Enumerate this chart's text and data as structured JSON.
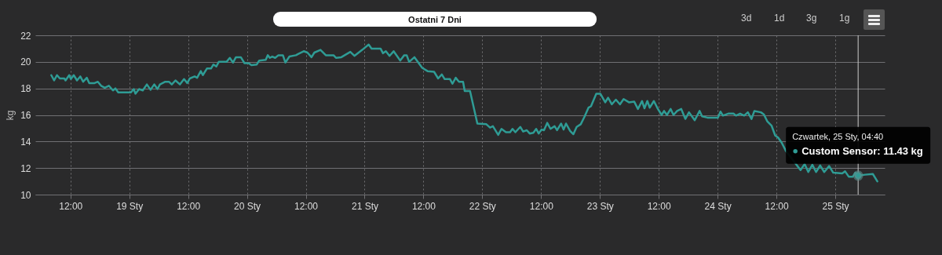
{
  "chart_data": {
    "type": "line",
    "title": "Ostatni 7 Dni",
    "ylabel": "kg",
    "xlim": [
      "--01-18T04:50",
      "--01-25T10:05"
    ],
    "xticks": [
      {
        "value": "--01-18T12:00",
        "label": "12:00"
      },
      {
        "value": "--01-19",
        "label": "19 Sty"
      },
      {
        "value": "--01-19T12:00",
        "label": "12:00"
      },
      {
        "value": "--01-20",
        "label": "20 Sty"
      },
      {
        "value": "--01-20T12:00",
        "label": "12:00"
      },
      {
        "value": "--01-21",
        "label": "21 Sty"
      },
      {
        "value": "--01-21T12:00",
        "label": "12:00"
      },
      {
        "value": "--01-22",
        "label": "22 Sty"
      },
      {
        "value": "--01-22T12:00",
        "label": "12:00"
      },
      {
        "value": "--01-23",
        "label": "23 Sty"
      },
      {
        "value": "--01-23T12:00",
        "label": "12:00"
      },
      {
        "value": "--01-24",
        "label": "24 Sty"
      },
      {
        "value": "--01-24T12:00",
        "label": "12:00"
      },
      {
        "value": "--01-25",
        "label": "25 Sty"
      }
    ],
    "ylim": [
      10,
      22
    ],
    "yticks": [
      10,
      12,
      14,
      16,
      18,
      20,
      22
    ],
    "grid": true,
    "series": [
      {
        "color": "#2f9c95",
        "x": [
          "--01-18T08:05",
          "--01-18T08:40",
          "--01-18T09:15",
          "--01-18T09:50",
          "--01-18T10:45",
          "--01-18T11:00",
          "--01-18T11:45",
          "--01-18T12:05",
          "--01-18T12:40",
          "--01-18T13:20",
          "--01-18T14:00",
          "--01-18T14:35",
          "--01-18T15:20",
          "--01-18T15:50",
          "--01-18T16:55",
          "--01-18T17:35",
          "--01-18T18:15",
          "--01-18T19:00",
          "--01-18T19:50",
          "--01-18T20:40",
          "--01-18T21:10",
          "--01-18T21:45",
          "--01-19T00:20",
          "--01-19T00:55",
          "--01-19T01:15",
          "--01-19T02:00",
          "--01-19T02:45",
          "--01-19T03:35",
          "--01-19T04:20",
          "--01-19T05:05",
          "--01-19T05:45",
          "--01-19T06:15",
          "--01-19T07:20",
          "--01-19T08:05",
          "--01-19T08:40",
          "--01-19T09:25",
          "--01-19T10:20",
          "--01-19T11:10",
          "--01-19T11:50",
          "--01-19T12:20",
          "--01-19T13:20",
          "--01-19T13:50",
          "--01-19T14:35",
          "--01-19T15:00",
          "--01-19T15:50",
          "--01-19T16:40",
          "--01-19T17:10",
          "--01-19T17:45",
          "--01-19T18:15",
          "--01-19T19:50",
          "--01-19T20:30",
          "--01-19T21:10",
          "--01-19T21:45",
          "--01-19T22:45",
          "--01-19T23:30",
          "--01-20T00:20",
          "--01-20T00:55",
          "--01-20T02:00",
          "--01-20T02:30",
          "--01-20T03:50",
          "--01-20T04:15",
          "--01-20T04:40",
          "--01-20T05:10",
          "--01-20T05:45",
          "--01-20T06:25",
          "--01-20T07:20",
          "--01-20T07:50",
          "--01-20T08:40",
          "--01-20T10:00",
          "--01-20T10:30",
          "--01-20T11:35",
          "--01-20T12:20",
          "--01-20T13:10",
          "--01-20T13:45",
          "--01-20T15:00",
          "--01-20T16:05",
          "--01-20T17:40",
          "--01-20T18:10",
          "--01-20T19:15",
          "--01-20T21:05",
          "--01-20T21:55",
          "--01-20T23:30",
          "--01-21T00:50",
          "--01-21T01:25",
          "--01-21T03:15",
          "--01-21T03:45",
          "--01-21T04:20",
          "--01-21T05:05",
          "--01-21T05:55",
          "--01-21T07:15",
          "--01-21T08:05",
          "--01-21T08:35",
          "--01-21T09:05",
          "--01-21T10:10",
          "--01-21T11:45",
          "--01-21T12:50",
          "--01-21T14:10",
          "--01-21T15:00",
          "--01-21T15:45",
          "--01-21T16:20",
          "--01-21T17:25",
          "--01-21T17:55",
          "--01-21T18:35",
          "--01-21T19:15",
          "--01-21T20:05",
          "--01-21T20:25",
          "--01-21T21:30",
          "--01-21T23:00",
          "--01-22T00:50",
          "--01-22T01:35",
          "--01-22T02:10",
          "--01-22T03:15",
          "--01-22T03:55",
          "--01-22T04:50",
          "--01-22T05:40",
          "--01-22T06:10",
          "--01-22T06:45",
          "--01-22T07:45",
          "--01-22T08:20",
          "--01-22T09:05",
          "--01-22T09:40",
          "--01-22T10:25",
          "--01-22T11:00",
          "--01-22T11:30",
          "--01-22T12:05",
          "--01-22T12:35",
          "--01-22T13:15",
          "--01-22T13:55",
          "--01-22T14:45",
          "--01-22T15:15",
          "--01-22T16:05",
          "--01-22T16:35",
          "--01-22T17:05",
          "--01-22T17:55",
          "--01-22T18:35",
          "--01-22T19:15",
          "--01-22T20:05",
          "--01-22T20:50",
          "--01-22T21:40",
          "--01-22T22:10",
          "--01-22T23:15",
          "--01-23T00:05",
          "--01-23T01:05",
          "--01-23T01:40",
          "--01-23T02:25",
          "--01-23T03:15",
          "--01-23T04:05",
          "--01-23T04:50",
          "--01-23T05:55",
          "--01-23T07:00",
          "--01-23T07:45",
          "--01-23T08:35",
          "--01-23T09:05",
          "--01-23T09:40",
          "--01-23T10:10",
          "--01-23T11:00",
          "--01-23T11:45",
          "--01-23T12:35",
          "--01-23T13:05",
          "--01-23T13:40",
          "--01-23T14:25",
          "--01-23T15:00",
          "--01-23T15:45",
          "--01-23T16:35",
          "--01-23T17:25",
          "--01-23T18:10",
          "--01-23T19:20",
          "--01-23T20:20",
          "--01-23T20:50",
          "--01-23T21:55",
          "--01-24T00:05",
          "--01-24T00:35",
          "--01-24T01:05",
          "--01-24T02:10",
          "--01-24T03:15",
          "--01-24T03:45",
          "--01-24T04:35",
          "--01-24T05:25",
          "--01-24T06:10",
          "--01-24T06:55",
          "--01-24T07:30",
          "--01-24T08:50",
          "--01-24T09:25",
          "--01-24T10:10",
          "--01-24T11:00",
          "--01-24T11:45",
          "--01-24T12:20",
          "--01-24T13:05",
          "--01-24T13:55",
          "--01-24T16:55",
          "--01-24T17:45",
          "--01-24T18:30",
          "--01-24T19:20",
          "--01-24T20:05",
          "--01-24T20:55",
          "--01-24T21:45",
          "--01-24T22:45",
          "--01-24T23:35",
          "--01-25T01:25",
          "--01-25T02:00",
          "--01-25T02:45",
          "--01-25T03:35",
          "--01-25T04:05",
          "--01-25T04:40",
          "--01-25T06:05",
          "--01-25T07:40",
          "--01-25T08:35"
        ],
        "values": [
          19.0,
          18.6,
          19.0,
          18.75,
          18.75,
          18.6,
          19.0,
          18.7,
          19.0,
          18.6,
          18.9,
          18.5,
          18.8,
          18.4,
          18.4,
          18.5,
          18.2,
          18.05,
          18.2,
          17.85,
          18.0,
          17.7,
          17.7,
          17.95,
          17.6,
          17.95,
          17.85,
          18.3,
          17.9,
          18.3,
          17.95,
          18.3,
          18.5,
          18.5,
          18.3,
          18.6,
          18.3,
          18.7,
          18.4,
          18.75,
          18.9,
          18.8,
          19.3,
          19.0,
          19.5,
          19.5,
          19.8,
          19.65,
          20.0,
          20.0,
          20.3,
          19.95,
          20.35,
          20.35,
          19.9,
          19.9,
          19.75,
          19.8,
          20.1,
          20.15,
          20.5,
          20.3,
          20.4,
          20.3,
          20.5,
          20.5,
          19.95,
          20.4,
          20.5,
          20.6,
          20.8,
          20.7,
          20.35,
          20.7,
          20.9,
          20.5,
          20.5,
          20.3,
          20.35,
          20.75,
          20.45,
          20.9,
          21.3,
          21.0,
          21.0,
          20.65,
          20.8,
          20.45,
          20.8,
          20.1,
          20.5,
          20.5,
          20.0,
          20.35,
          19.55,
          19.3,
          19.25,
          18.75,
          19.05,
          18.7,
          18.7,
          18.35,
          18.8,
          18.5,
          18.5,
          17.8,
          17.8,
          15.35,
          15.3,
          15.05,
          15.15,
          14.5,
          14.95,
          14.7,
          14.7,
          14.95,
          14.7,
          15.1,
          14.75,
          14.85,
          14.6,
          14.65,
          14.95,
          14.6,
          14.9,
          14.85,
          15.4,
          14.95,
          15.15,
          14.85,
          15.35,
          14.9,
          15.35,
          14.8,
          14.55,
          15.1,
          15.3,
          15.85,
          16.55,
          16.65,
          17.6,
          17.6,
          16.95,
          17.3,
          16.8,
          17.15,
          16.8,
          17.2,
          16.95,
          17.0,
          16.45,
          17.05,
          16.5,
          17.05,
          16.55,
          17.05,
          16.5,
          16.0,
          16.3,
          16.0,
          16.45,
          16.0,
          16.3,
          16.45,
          15.7,
          16.2,
          15.6,
          16.3,
          15.9,
          15.8,
          15.8,
          16.25,
          15.95,
          16.1,
          16.1,
          15.95,
          16.1,
          15.95,
          16.2,
          15.7,
          16.3,
          16.2,
          16.05,
          15.5,
          15.2,
          14.45,
          14.3,
          13.9,
          13.3,
          11.85,
          12.3,
          11.7,
          12.25,
          11.7,
          12.2,
          11.7,
          12.15,
          11.65,
          11.6,
          11.75,
          11.35,
          11.35,
          11.65,
          11.43,
          11.5,
          11.55,
          11.0
        ]
      }
    ],
    "ref_lines": [
      {
        "axis": "x",
        "value": "--01-25T04:40",
        "color": "#cccccc"
      }
    ],
    "annotations": [
      "Czwartek, 25 Sty, 04:40",
      {
        "text": "Custom Sensor: 11.43 kg",
        "x": "--01-25T04:40",
        "y": 11.43
      },
      "3d",
      "1d",
      "3g",
      "1g"
    ]
  }
}
